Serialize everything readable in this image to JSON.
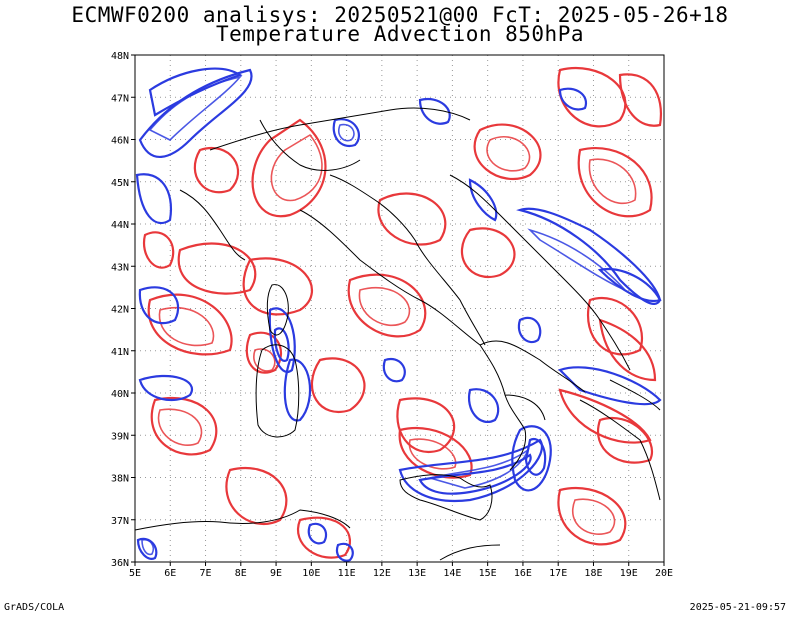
{
  "header": {
    "line1": "ECMWF0200 analisys: 20250521@00 FcT: 2025-05-26+18",
    "line2": "Temperature Advection 850hPa"
  },
  "map": {
    "lon_ticks": [
      "5E",
      "6E",
      "7E",
      "8E",
      "9E",
      "10E",
      "11E",
      "12E",
      "13E",
      "14E",
      "15E",
      "16E",
      "17E",
      "18E",
      "19E",
      "20E"
    ],
    "lat_ticks": [
      "48N",
      "47N",
      "46N",
      "45N",
      "44N",
      "43N",
      "42N",
      "41N",
      "40N",
      "39N",
      "38N",
      "37N",
      "36N"
    ],
    "lon_range": [
      5,
      20
    ],
    "lat_range": [
      36,
      48
    ],
    "grid": "dotted",
    "warm_color": "#e8383b",
    "cold_color": "#2b3be0",
    "coast_color": "#000000"
  },
  "footer": {
    "left": "GrADS/COLA",
    "right": "2025-05-21-09:57"
  }
}
